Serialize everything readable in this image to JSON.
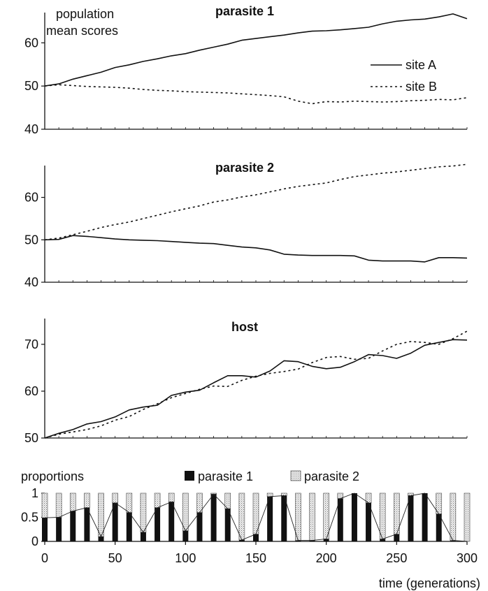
{
  "chart_data": [
    {
      "type": "line",
      "title": "parasite 1",
      "ylabel": "population mean scores",
      "xlim": [
        0,
        300
      ],
      "ylim": [
        40,
        67
      ],
      "yticks": [
        40,
        50,
        60
      ],
      "legend": {
        "placement": "top-right",
        "entries": [
          "site A",
          "site B"
        ]
      },
      "x": [
        0,
        10,
        20,
        30,
        40,
        50,
        60,
        70,
        80,
        90,
        100,
        110,
        120,
        130,
        140,
        150,
        160,
        170,
        180,
        190,
        200,
        210,
        220,
        230,
        240,
        250,
        260,
        270,
        280,
        290,
        300
      ],
      "series": [
        {
          "name": "site A",
          "style": "solid",
          "values": [
            50,
            50.5,
            51.6,
            52.4,
            53.2,
            54.3,
            54.9,
            55.7,
            56.3,
            57.0,
            57.5,
            58.3,
            59.0,
            59.7,
            60.6,
            61.0,
            61.4,
            61.8,
            62.3,
            62.7,
            62.8,
            63.0,
            63.3,
            63.6,
            64.4,
            65.0,
            65.3,
            65.5,
            66.0,
            66.7,
            65.6
          ]
        },
        {
          "name": "site B",
          "style": "dotted",
          "values": [
            50,
            50.3,
            50.1,
            49.9,
            49.8,
            49.7,
            49.5,
            49.2,
            49.0,
            48.9,
            48.7,
            48.6,
            48.5,
            48.4,
            48.2,
            48.0,
            47.8,
            47.5,
            46.5,
            45.9,
            46.4,
            46.3,
            46.5,
            46.4,
            46.3,
            46.4,
            46.6,
            46.7,
            46.9,
            46.8,
            47.3
          ]
        }
      ]
    },
    {
      "type": "line",
      "title": "parasite 2",
      "xlim": [
        0,
        300
      ],
      "ylim": [
        40,
        67.5
      ],
      "yticks": [
        40,
        50,
        60
      ],
      "x": [
        0,
        10,
        20,
        30,
        40,
        50,
        60,
        70,
        80,
        90,
        100,
        110,
        120,
        130,
        140,
        150,
        160,
        170,
        180,
        190,
        200,
        210,
        220,
        230,
        240,
        250,
        260,
        270,
        280,
        290,
        300
      ],
      "series": [
        {
          "name": "site A",
          "style": "solid",
          "values": [
            50,
            50.1,
            51.0,
            50.8,
            50.5,
            50.2,
            50.0,
            49.9,
            49.8,
            49.6,
            49.4,
            49.2,
            49.1,
            48.7,
            48.3,
            48.1,
            47.6,
            46.6,
            46.4,
            46.3,
            46.3,
            46.3,
            46.2,
            45.2,
            45.0,
            45.0,
            45.0,
            44.8,
            45.8,
            45.8,
            45.7
          ]
        },
        {
          "name": "site B",
          "style": "dotted",
          "values": [
            50,
            50.4,
            51.2,
            52.0,
            52.9,
            53.6,
            54.2,
            55.0,
            55.8,
            56.6,
            57.3,
            58.0,
            58.9,
            59.4,
            60.1,
            60.6,
            61.3,
            62.0,
            62.6,
            63.0,
            63.4,
            64.2,
            64.9,
            65.3,
            65.7,
            66.0,
            66.4,
            66.8,
            67.2,
            67.4,
            67.8
          ]
        }
      ]
    },
    {
      "type": "line",
      "title": "host",
      "xlim": [
        0,
        300
      ],
      "ylim": [
        50,
        75.5
      ],
      "yticks": [
        50,
        60,
        70
      ],
      "x": [
        0,
        10,
        20,
        30,
        40,
        50,
        60,
        70,
        80,
        90,
        100,
        110,
        120,
        130,
        140,
        150,
        160,
        170,
        180,
        190,
        200,
        210,
        220,
        230,
        240,
        250,
        260,
        270,
        280,
        290,
        300
      ],
      "series": [
        {
          "name": "site A",
          "style": "solid",
          "values": [
            50,
            51.0,
            51.8,
            53.0,
            53.5,
            54.5,
            56.0,
            56.6,
            57.0,
            59.1,
            59.8,
            60.2,
            61.8,
            63.3,
            63.3,
            63.0,
            64.3,
            66.5,
            66.3,
            65.3,
            64.8,
            65.1,
            66.3,
            67.8,
            67.6,
            67.0,
            68.1,
            69.8,
            70.4,
            71.0,
            70.9
          ]
        },
        {
          "name": "site B",
          "style": "dotted",
          "values": [
            50,
            50.8,
            51.3,
            51.8,
            52.6,
            53.8,
            54.6,
            56.1,
            57.3,
            58.6,
            59.5,
            60.4,
            61.1,
            61.0,
            62.3,
            63.2,
            63.8,
            64.2,
            64.7,
            66.1,
            67.2,
            67.4,
            66.8,
            67.0,
            68.6,
            70.0,
            70.6,
            70.4,
            70.0,
            71.2,
            72.8
          ]
        }
      ]
    },
    {
      "type": "bar",
      "title": "proportions",
      "xlabel": "time (generations)",
      "xlim": [
        0,
        300
      ],
      "ylim": [
        0,
        1
      ],
      "yticks": [
        0,
        0.5,
        1
      ],
      "xticks": [
        0,
        50,
        100,
        150,
        200,
        250,
        300
      ],
      "legend": {
        "placement": "top",
        "entries": [
          "parasite 1",
          "parasite 2"
        ]
      },
      "stacked": true,
      "x": [
        0,
        10,
        20,
        30,
        40,
        50,
        60,
        70,
        80,
        90,
        100,
        110,
        120,
        130,
        140,
        150,
        160,
        170,
        180,
        190,
        200,
        210,
        220,
        230,
        240,
        250,
        260,
        270,
        280,
        290,
        300
      ],
      "series": [
        {
          "name": "parasite 1",
          "values": [
            0.49,
            0.5,
            0.63,
            0.7,
            0.1,
            0.8,
            0.6,
            0.19,
            0.7,
            0.82,
            0.22,
            0.6,
            0.98,
            0.68,
            0.03,
            0.15,
            0.93,
            0.95,
            0.02,
            0.02,
            0.05,
            0.89,
            1.0,
            0.8,
            0.05,
            0.15,
            0.95,
            1.0,
            0.57,
            0.02,
            0.0
          ]
        },
        {
          "name": "parasite 2",
          "values": [
            0.51,
            0.5,
            0.37,
            0.3,
            0.9,
            0.2,
            0.4,
            0.81,
            0.3,
            0.18,
            0.78,
            0.4,
            0.02,
            0.32,
            0.97,
            0.85,
            0.07,
            0.05,
            0.98,
            0.98,
            0.95,
            0.11,
            0.0,
            0.2,
            0.95,
            0.85,
            0.05,
            0.0,
            0.43,
            0.98,
            1.0
          ]
        }
      ]
    }
  ],
  "colors": {
    "ink": "#111111",
    "parasite1_fill": "#111111",
    "parasite2_fill": "#d8d8d8"
  }
}
